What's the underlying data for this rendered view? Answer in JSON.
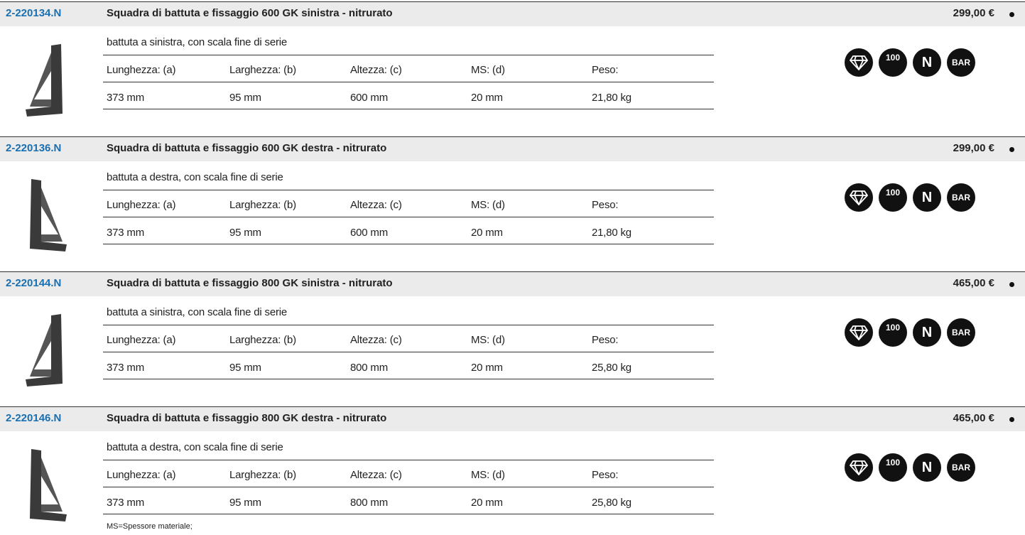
{
  "items": [
    {
      "code": "2-220134.N",
      "title": "Squadra di battuta e fissaggio 600 GK sinistra - nitrurato",
      "price": "299,00 €",
      "description": "battuta a sinistra, con scala fine di serie",
      "labels": [
        "Lunghezza: (a)",
        "Larghezza: (b)",
        "Altezza: (c)",
        "MS: (d)",
        "Peso:"
      ],
      "values": [
        "373 mm",
        "95 mm",
        "600 mm",
        "20 mm",
        "21,80 kg"
      ],
      "icons": [
        "100",
        "N",
        "BAR"
      ]
    },
    {
      "code": "2-220136.N",
      "title": "Squadra di battuta e fissaggio 600 GK destra - nitrurato",
      "price": "299,00 €",
      "description": "battuta a destra, con scala fine di serie",
      "labels": [
        "Lunghezza: (a)",
        "Larghezza: (b)",
        "Altezza: (c)",
        "MS: (d)",
        "Peso:"
      ],
      "values": [
        "373 mm",
        "95 mm",
        "600 mm",
        "20 mm",
        "21,80 kg"
      ],
      "icons": [
        "100",
        "N",
        "BAR"
      ]
    },
    {
      "code": "2-220144.N",
      "title": "Squadra di battuta e fissaggio 800 GK sinistra - nitrurato",
      "price": "465,00 €",
      "description": "battuta a sinistra, con scala fine di serie",
      "labels": [
        "Lunghezza: (a)",
        "Larghezza: (b)",
        "Altezza: (c)",
        "MS: (d)",
        "Peso:"
      ],
      "values": [
        "373 mm",
        "95 mm",
        "800 mm",
        "20 mm",
        "25,80 kg"
      ],
      "icons": [
        "100",
        "N",
        "BAR"
      ]
    },
    {
      "code": "2-220146.N",
      "title": "Squadra di battuta e fissaggio 800 GK destra - nitrurato",
      "price": "465,00 €",
      "description": "battuta a destra, con scala fine di serie",
      "labels": [
        "Lunghezza: (a)",
        "Larghezza: (b)",
        "Altezza: (c)",
        "MS: (d)",
        "Peso:"
      ],
      "values": [
        "373 mm",
        "95 mm",
        "800 mm",
        "20 mm",
        "25,80 kg"
      ],
      "icons": [
        "100",
        "N",
        "BAR"
      ]
    }
  ],
  "footnote": "MS=Spessore materiale;"
}
